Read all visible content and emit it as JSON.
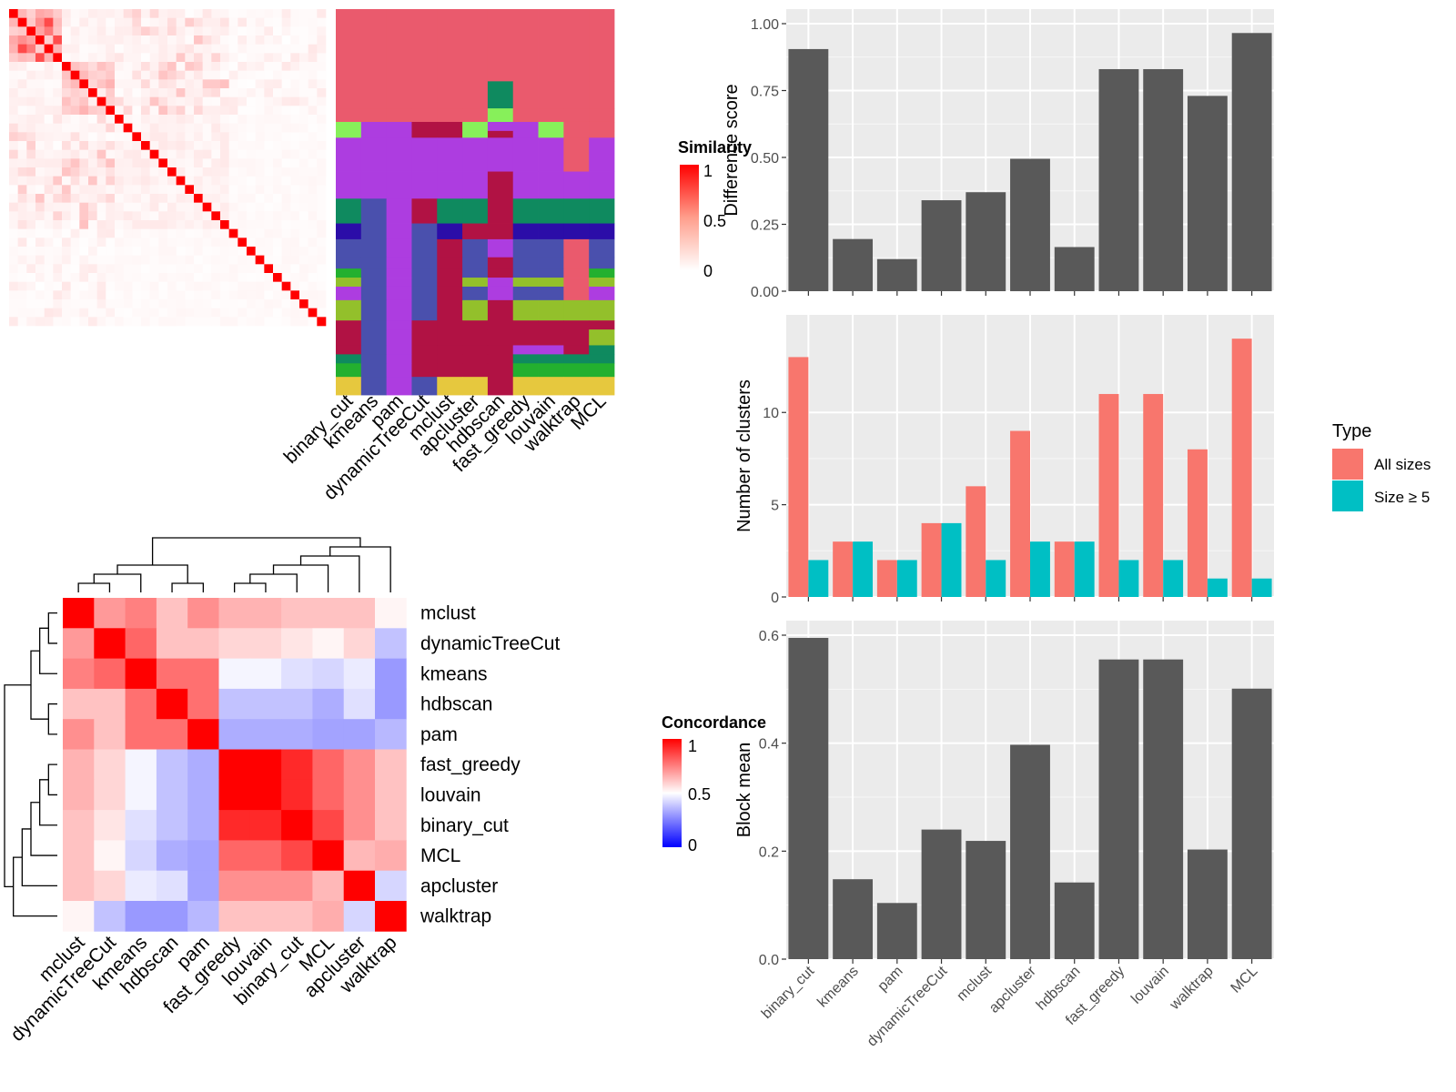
{
  "chart_data": [
    {
      "type": "heatmap",
      "name": "cell-similarity-heatmap",
      "legend_title": "Similarity",
      "legend_ticks": [
        "1",
        "0.5",
        "0"
      ],
      "color_low": "#ffffff",
      "color_high": "#ff0000",
      "n_cells": 36,
      "diagonal_value": 1,
      "block_values": [
        {
          "rows": [
            0,
            6
          ],
          "value": 0.45
        },
        {
          "rows": [
            6,
            12
          ],
          "value": 0.2
        },
        {
          "rows": [
            12,
            36
          ],
          "value": 0.06
        }
      ]
    },
    {
      "type": "heatmap",
      "name": "cluster-assignments",
      "methods": [
        "binary_cut",
        "kmeans",
        "pam",
        "dynamicTreeCut",
        "mclust",
        "apcluster",
        "hdbscan",
        "fast_greedy",
        "louvain",
        "walktrap",
        "MCL"
      ],
      "palette": [
        "#ea5a6d",
        "#b11244",
        "#ad3de0",
        "#0f8a5f",
        "#2b0da8",
        "#4a50ad",
        "#93c02b",
        "#e6c83e",
        "#87f05a",
        "#23b02f",
        "#11a36a"
      ],
      "rows": [
        {
          "height": 3.2,
          "cells": [
            0,
            0,
            0,
            0,
            0,
            0,
            0,
            0,
            0,
            0,
            0
          ]
        },
        {
          "height": 1.2,
          "cells": [
            0,
            0,
            0,
            0,
            0,
            0,
            3,
            0,
            0,
            0,
            0
          ]
        },
        {
          "height": 0.6,
          "cells": [
            0,
            0,
            0,
            0,
            0,
            0,
            8,
            0,
            0,
            0,
            0
          ]
        },
        {
          "height": 0.4,
          "cells": [
            8,
            2,
            2,
            1,
            1,
            8,
            2,
            2,
            8,
            0,
            0
          ]
        },
        {
          "height": 0.3,
          "cells": [
            8,
            2,
            2,
            1,
            1,
            8,
            1,
            2,
            8,
            0,
            0
          ]
        },
        {
          "height": 1.5,
          "cells": [
            2,
            2,
            2,
            2,
            2,
            2,
            2,
            2,
            2,
            0,
            2
          ]
        },
        {
          "height": 1.2,
          "cells": [
            2,
            2,
            2,
            2,
            2,
            2,
            1,
            2,
            2,
            2,
            2
          ]
        },
        {
          "height": 1.1,
          "cells": [
            3,
            5,
            2,
            1,
            3,
            3,
            1,
            3,
            3,
            3,
            3
          ]
        },
        {
          "height": 0.7,
          "cells": [
            4,
            5,
            2,
            5,
            4,
            1,
            1,
            4,
            4,
            4,
            4
          ]
        },
        {
          "height": 0.8,
          "cells": [
            5,
            5,
            2,
            5,
            1,
            5,
            2,
            5,
            5,
            0,
            5
          ]
        },
        {
          "height": 0.5,
          "cells": [
            5,
            5,
            2,
            5,
            1,
            5,
            1,
            5,
            5,
            0,
            5
          ]
        },
        {
          "height": 0.4,
          "cells": [
            9,
            5,
            2,
            5,
            1,
            5,
            1,
            5,
            5,
            0,
            9
          ]
        },
        {
          "height": 0.4,
          "cells": [
            6,
            5,
            2,
            5,
            1,
            6,
            2,
            6,
            6,
            0,
            6
          ]
        },
        {
          "height": 0.6,
          "cells": [
            2,
            5,
            2,
            5,
            1,
            5,
            2,
            5,
            5,
            0,
            2
          ]
        },
        {
          "height": 0.9,
          "cells": [
            6,
            5,
            2,
            5,
            1,
            6,
            1,
            6,
            6,
            6,
            6
          ]
        },
        {
          "height": 0.4,
          "cells": [
            1,
            5,
            2,
            1,
            1,
            1,
            1,
            1,
            1,
            1,
            1
          ]
        },
        {
          "height": 0.7,
          "cells": [
            1,
            5,
            2,
            1,
            1,
            1,
            1,
            1,
            1,
            1,
            6
          ]
        },
        {
          "height": 0.4,
          "cells": [
            1,
            5,
            2,
            1,
            1,
            1,
            1,
            2,
            2,
            1,
            3
          ]
        },
        {
          "height": 0.4,
          "cells": [
            3,
            5,
            2,
            1,
            1,
            1,
            1,
            3,
            3,
            3,
            3
          ]
        },
        {
          "height": 0.6,
          "cells": [
            9,
            5,
            2,
            1,
            1,
            1,
            1,
            9,
            9,
            9,
            9
          ]
        },
        {
          "height": 0.8,
          "cells": [
            7,
            5,
            2,
            5,
            7,
            7,
            1,
            7,
            7,
            7,
            7
          ]
        }
      ]
    },
    {
      "type": "heatmap",
      "name": "concordance-heatmap",
      "legend_title": "Concordance",
      "legend_ticks": [
        "1",
        "0.5",
        "0"
      ],
      "color_low": "#0000ff",
      "color_mid": "#ffffff",
      "color_high": "#ff0000",
      "labels": [
        "mclust",
        "dynamicTreeCut",
        "kmeans",
        "hdbscan",
        "pam",
        "fast_greedy",
        "louvain",
        "binary_cut",
        "MCL",
        "apcluster",
        "walktrap"
      ],
      "matrix": [
        [
          1.0,
          0.7,
          0.75,
          0.62,
          0.72,
          0.65,
          0.65,
          0.62,
          0.62,
          0.62,
          0.52
        ],
        [
          0.7,
          1.0,
          0.8,
          0.62,
          0.62,
          0.58,
          0.58,
          0.55,
          0.52,
          0.58,
          0.38
        ],
        [
          0.75,
          0.8,
          1.0,
          0.78,
          0.78,
          0.48,
          0.48,
          0.44,
          0.42,
          0.46,
          0.3
        ],
        [
          0.62,
          0.62,
          0.78,
          1.0,
          0.78,
          0.38,
          0.38,
          0.38,
          0.34,
          0.44,
          0.3
        ],
        [
          0.72,
          0.62,
          0.78,
          0.78,
          1.0,
          0.34,
          0.34,
          0.34,
          0.32,
          0.32,
          0.36
        ],
        [
          0.65,
          0.58,
          0.48,
          0.38,
          0.34,
          1.0,
          1.0,
          0.92,
          0.8,
          0.72,
          0.62
        ],
        [
          0.65,
          0.58,
          0.48,
          0.38,
          0.34,
          1.0,
          1.0,
          0.92,
          0.8,
          0.72,
          0.62
        ],
        [
          0.62,
          0.55,
          0.44,
          0.38,
          0.34,
          0.92,
          0.92,
          1.0,
          0.86,
          0.72,
          0.62
        ],
        [
          0.62,
          0.52,
          0.42,
          0.34,
          0.32,
          0.8,
          0.8,
          0.86,
          1.0,
          0.64,
          0.66
        ],
        [
          0.62,
          0.58,
          0.46,
          0.44,
          0.32,
          0.72,
          0.72,
          0.72,
          0.64,
          1.0,
          0.42
        ],
        [
          0.52,
          0.38,
          0.3,
          0.3,
          0.36,
          0.62,
          0.62,
          0.62,
          0.66,
          0.42,
          1.0
        ]
      ],
      "dendrogram": "((((mclust,dynamicTreeCut),kmeans),(hdbscan,pam)),(((fast_greedy,louvain),binary_cut),MCL),apcluster),walktrap)"
    },
    {
      "type": "bar",
      "name": "difference-score",
      "categories": [
        "binary_cut",
        "kmeans",
        "pam",
        "dynamicTreeCut",
        "mclust",
        "apcluster",
        "hdbscan",
        "fast_greedy",
        "louvain",
        "walktrap",
        "MCL"
      ],
      "values": [
        0.905,
        0.195,
        0.12,
        0.34,
        0.37,
        0.495,
        0.165,
        0.83,
        0.83,
        0.73,
        0.965
      ],
      "ylabel": "Difference score",
      "ylim": [
        0,
        1.0
      ],
      "yticks": [
        0,
        0.25,
        0.5,
        0.75,
        1.0
      ],
      "ytick_labels": [
        "0.00",
        "0.25",
        "0.50",
        "0.75",
        "1.00"
      ],
      "bar_color": "#595959",
      "panel_color": "#ebebeb"
    },
    {
      "type": "bar",
      "name": "number-of-clusters",
      "categories": [
        "binary_cut",
        "kmeans",
        "pam",
        "dynamicTreeCut",
        "mclust",
        "apcluster",
        "hdbscan",
        "fast_greedy",
        "louvain",
        "walktrap",
        "MCL"
      ],
      "series": [
        {
          "name": "All sizes",
          "color": "#f8766d",
          "values": [
            13,
            3,
            2,
            4,
            6,
            9,
            3,
            11,
            11,
            8,
            14
          ]
        },
        {
          "name": "Size ≥ 5",
          "color": "#00bfc4",
          "values": [
            2,
            3,
            2,
            4,
            2,
            3,
            3,
            2,
            2,
            1,
            1
          ]
        }
      ],
      "ylabel": "Number of clusters",
      "ylim": [
        0,
        14.5
      ],
      "yticks": [
        0,
        5,
        10
      ],
      "ytick_labels": [
        "0",
        "5",
        "10"
      ],
      "legend_title": "Type",
      "legend_position": "right",
      "panel_color": "#ebebeb"
    },
    {
      "type": "bar",
      "name": "block-mean",
      "categories": [
        "binary_cut",
        "kmeans",
        "pam",
        "dynamicTreeCut",
        "mclust",
        "apcluster",
        "hdbscan",
        "fast_greedy",
        "louvain",
        "walktrap",
        "MCL"
      ],
      "values": [
        0.595,
        0.148,
        0.104,
        0.24,
        0.219,
        0.397,
        0.142,
        0.555,
        0.555,
        0.203,
        0.501
      ],
      "ylabel": "Block mean",
      "ylim": [
        0,
        0.6
      ],
      "yticks": [
        0,
        0.2,
        0.4,
        0.6
      ],
      "ytick_labels": [
        "0.0",
        "0.2",
        "0.4",
        "0.6"
      ],
      "bar_color": "#595959",
      "panel_color": "#ebebeb"
    }
  ]
}
